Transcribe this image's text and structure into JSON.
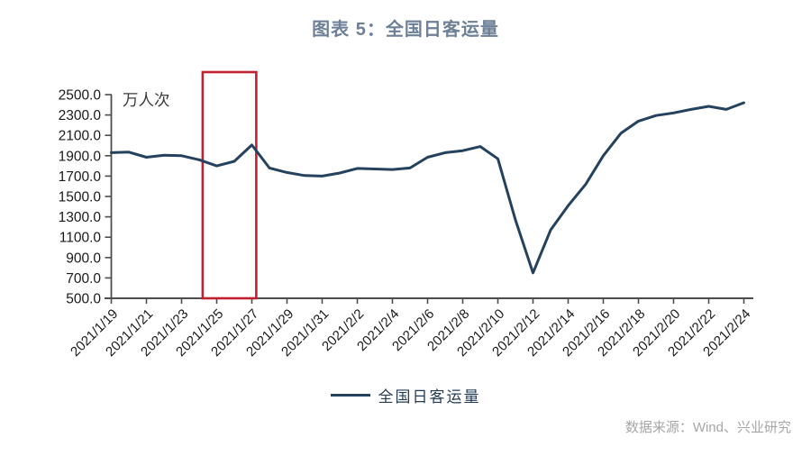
{
  "title": "图表 5：全国日客运量",
  "legend": {
    "label": "全国日客运量"
  },
  "source": "数据来源：Wind、兴业研究",
  "colors": {
    "title": "#6d8097",
    "line": "#24425e",
    "highlight_box": "#c02130",
    "axis": "#4d4d4d",
    "tick_label": "#1a1a1a",
    "unit_label": "#3b3b3b",
    "source_text": "#a6a6a6"
  },
  "chart_data": {
    "type": "line",
    "title": "图表 5：全国日客运量",
    "ylabel": "万人次",
    "ylim": [
      500,
      2500
    ],
    "ytick_step": 200,
    "grid": false,
    "legend_position": "bottom",
    "ytick_labels": [
      "2500.0",
      "2300.0",
      "2100.0",
      "1900.0",
      "1700.0",
      "1500.0",
      "1300.0",
      "1100.0",
      "900.0",
      "700.0",
      "500.0"
    ],
    "xtick_labels": [
      "2021/1/19",
      "2021/1/21",
      "2021/1/23",
      "2021/1/25",
      "2021/1/27",
      "2021/1/29",
      "2021/1/31",
      "2021/2/2",
      "2021/2/4",
      "2021/2/6",
      "2021/2/8",
      "2021/2/10",
      "2021/2/12",
      "2021/2/14",
      "2021/2/16",
      "2021/2/18",
      "2021/2/20",
      "2021/2/22",
      "2021/2/24"
    ],
    "series": [
      {
        "name": "全国日客运量",
        "color": "#24425e",
        "x": [
          "2021/1/19",
          "2021/1/20",
          "2021/1/21",
          "2021/1/22",
          "2021/1/23",
          "2021/1/24",
          "2021/1/25",
          "2021/1/26",
          "2021/1/27",
          "2021/1/28",
          "2021/1/29",
          "2021/1/30",
          "2021/1/31",
          "2021/2/1",
          "2021/2/2",
          "2021/2/3",
          "2021/2/4",
          "2021/2/5",
          "2021/2/6",
          "2021/2/7",
          "2021/2/8",
          "2021/2/9",
          "2021/2/10",
          "2021/2/11",
          "2021/2/12",
          "2021/2/13",
          "2021/2/14",
          "2021/2/15",
          "2021/2/16",
          "2021/2/17",
          "2021/2/18",
          "2021/2/19",
          "2021/2/20",
          "2021/2/21",
          "2021/2/22",
          "2021/2/23",
          "2021/2/24"
        ],
        "values": [
          1930,
          1935,
          1885,
          1905,
          1900,
          1860,
          1800,
          1845,
          2005,
          1780,
          1735,
          1705,
          1700,
          1730,
          1775,
          1770,
          1765,
          1780,
          1885,
          1930,
          1950,
          1990,
          1870,
          1270,
          750,
          1170,
          1410,
          1620,
          1900,
          2120,
          2240,
          2295,
          2320,
          2355,
          2385,
          2355,
          2420
        ]
      }
    ],
    "highlight_box": {
      "start_day_index": 5.2,
      "end_day_index": 8.25,
      "color": "#c02130"
    }
  }
}
